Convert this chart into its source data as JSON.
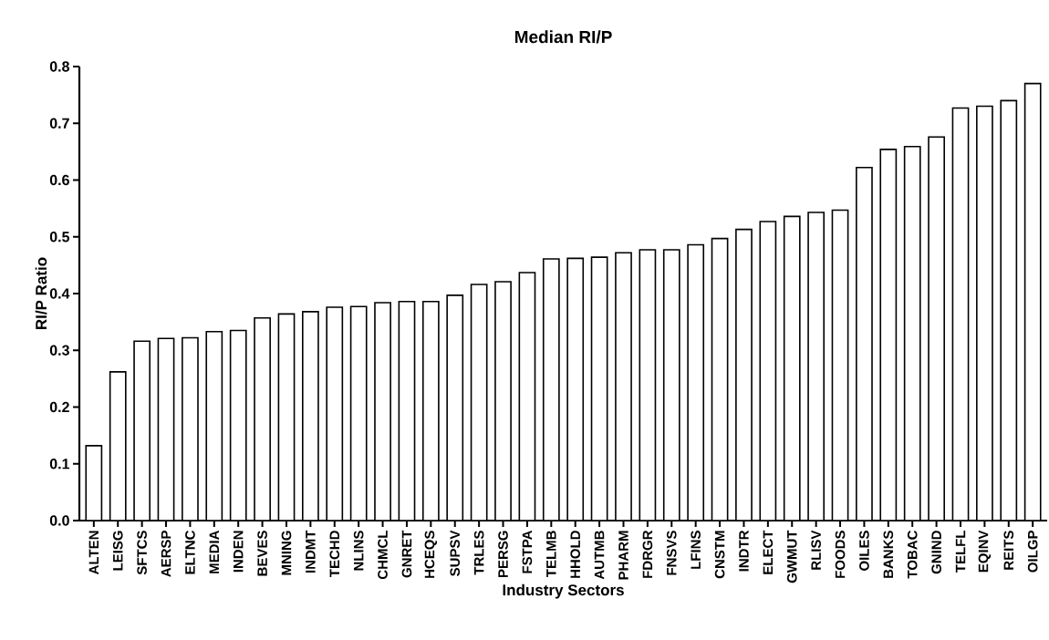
{
  "chart_data": {
    "type": "bar",
    "title": "Median RI/P",
    "xlabel": "Industry Sectors",
    "ylabel": "RI/P Ratio",
    "categories": [
      "ALTEN",
      "LEISG",
      "SFTCS",
      "AERSP",
      "ELTNC",
      "MEDIA",
      "INDEN",
      "BEVES",
      "MNING",
      "INDMT",
      "TECHD",
      "NLINS",
      "CHMCL",
      "GNRET",
      "HCEQS",
      "SUPSV",
      "TRLES",
      "PERSG",
      "FSTPA",
      "TELMB",
      "HHOLD",
      "AUTMB",
      "PHARM",
      "FDRGR",
      "FNSVS",
      "LFINS",
      "CNSTM",
      "INDTR",
      "ELECT",
      "GWMUT",
      "RLISV",
      "FOODS",
      "OILES",
      "BANKS",
      "TOBAC",
      "GNIND",
      "TELFL",
      "EQINV",
      "REITS",
      "OILGP"
    ],
    "values": [
      0.132,
      0.262,
      0.316,
      0.321,
      0.322,
      0.333,
      0.335,
      0.357,
      0.364,
      0.368,
      0.376,
      0.377,
      0.384,
      0.386,
      0.386,
      0.397,
      0.416,
      0.421,
      0.437,
      0.461,
      0.462,
      0.464,
      0.472,
      0.477,
      0.477,
      0.486,
      0.497,
      0.513,
      0.527,
      0.536,
      0.543,
      0.547,
      0.622,
      0.654,
      0.659,
      0.676,
      0.727,
      0.73,
      0.74,
      0.77
    ],
    "color": "#ffffff",
    "ylim": [
      0,
      0.8
    ],
    "yticks": [
      {
        "value": 0,
        "label": "0.0"
      },
      {
        "value": 0.1,
        "label": "0.1"
      },
      {
        "value": 0.2,
        "label": "0.2"
      },
      {
        "value": 0.3,
        "label": "0.3"
      },
      {
        "value": 0.4,
        "label": "0.4"
      },
      {
        "value": 0.5,
        "label": "0.5"
      },
      {
        "value": 0.6,
        "label": "0.6"
      },
      {
        "value": 0.7,
        "label": "0.7"
      },
      {
        "value": 0.8,
        "label": "0.8"
      }
    ]
  }
}
